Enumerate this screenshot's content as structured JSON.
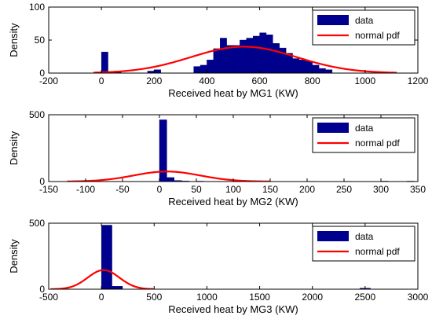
{
  "chart_data": [
    {
      "type": "bar",
      "xlabel": "Received heat by MG1 (KW)",
      "ylabel": "Density",
      "xlim": [
        -200,
        1200
      ],
      "ylim": [
        0,
        100
      ],
      "xticks": [
        "-200",
        "0",
        "200",
        "400",
        "600",
        "800",
        "1000",
        "1200"
      ],
      "yticks": [
        "0",
        "50",
        "100"
      ],
      "legend_position": "top-right",
      "legend": [
        "data",
        "normal pdf"
      ],
      "series": [
        {
          "name": "data",
          "kind": "histogram",
          "bin_width": 25,
          "bins": [
            {
              "x0": 0,
              "h": 32
            },
            {
              "x0": 25,
              "h": 2
            },
            {
              "x0": 50,
              "h": 2
            },
            {
              "x0": 175,
              "h": 3
            },
            {
              "x0": 200,
              "h": 5
            },
            {
              "x0": 350,
              "h": 10
            },
            {
              "x0": 375,
              "h": 12
            },
            {
              "x0": 400,
              "h": 20
            },
            {
              "x0": 425,
              "h": 37
            },
            {
              "x0": 450,
              "h": 53
            },
            {
              "x0": 475,
              "h": 42
            },
            {
              "x0": 500,
              "h": 42
            },
            {
              "x0": 525,
              "h": 50
            },
            {
              "x0": 550,
              "h": 53
            },
            {
              "x0": 575,
              "h": 56
            },
            {
              "x0": 600,
              "h": 61
            },
            {
              "x0": 625,
              "h": 58
            },
            {
              "x0": 650,
              "h": 45
            },
            {
              "x0": 675,
              "h": 38
            },
            {
              "x0": 700,
              "h": 30
            },
            {
              "x0": 725,
              "h": 22
            },
            {
              "x0": 750,
              "h": 20
            },
            {
              "x0": 775,
              "h": 18
            },
            {
              "x0": 800,
              "h": 12
            },
            {
              "x0": 825,
              "h": 7
            },
            {
              "x0": 850,
              "h": 5
            }
          ]
        },
        {
          "name": "normal pdf",
          "kind": "curve",
          "color": "#ff0000",
          "mean": 540,
          "sigma": 200,
          "peak": 40,
          "xrange": [
            -30,
            1120
          ]
        }
      ]
    },
    {
      "type": "bar",
      "xlabel": "Received heat by MG2 (KW)",
      "ylabel": "Density",
      "xlim": [
        -150,
        350
      ],
      "ylim": [
        0,
        500
      ],
      "xticks": [
        "-150",
        "-100",
        "-50",
        "0",
        "50",
        "100",
        "150",
        "200",
        "250",
        "300",
        "350"
      ],
      "yticks": [
        "0",
        "500"
      ],
      "legend_position": "top-right",
      "legend": [
        "data",
        "normal pdf"
      ],
      "series": [
        {
          "name": "data",
          "kind": "histogram",
          "bin_width": 10,
          "bins": [
            {
              "x0": 0,
              "h": 462
            },
            {
              "x0": 10,
              "h": 30
            },
            {
              "x0": 20,
              "h": 8
            },
            {
              "x0": 30,
              "h": 4
            },
            {
              "x0": 50,
              "h": 3
            },
            {
              "x0": 100,
              "h": 2
            },
            {
              "x0": 200,
              "h": 2
            },
            {
              "x0": 250,
              "h": 2
            },
            {
              "x0": 300,
              "h": 3
            },
            {
              "x0": 335,
              "h": 3
            }
          ]
        },
        {
          "name": "normal pdf",
          "kind": "curve",
          "color": "#ff0000",
          "mean": 10,
          "sigma": 45,
          "peak": 75,
          "xrange": [
            -125,
            150
          ]
        }
      ]
    },
    {
      "type": "bar",
      "xlabel": "Received heat by MG3 (KW)",
      "ylabel": "Density",
      "xlim": [
        -500,
        3000
      ],
      "ylim": [
        0,
        500
      ],
      "xticks": [
        "-500",
        "0",
        "500",
        "1000",
        "1500",
        "2000",
        "2500",
        "3000"
      ],
      "yticks": [
        "0",
        "500"
      ],
      "legend_position": "top-right",
      "legend": [
        "data",
        "normal pdf"
      ],
      "series": [
        {
          "name": "data",
          "kind": "histogram",
          "bin_width": 100,
          "bins": [
            {
              "x0": 0,
              "h": 485
            },
            {
              "x0": 100,
              "h": 22
            },
            {
              "x0": 2450,
              "h": 8
            }
          ]
        },
        {
          "name": "normal pdf",
          "kind": "curve",
          "color": "#ff0000",
          "mean": 20,
          "sigma": 150,
          "peak": 145,
          "xrange": [
            -480,
            500
          ]
        }
      ]
    }
  ],
  "colors": {
    "bar": "#00008f",
    "curve": "#ff0000",
    "axis": "#000000"
  }
}
